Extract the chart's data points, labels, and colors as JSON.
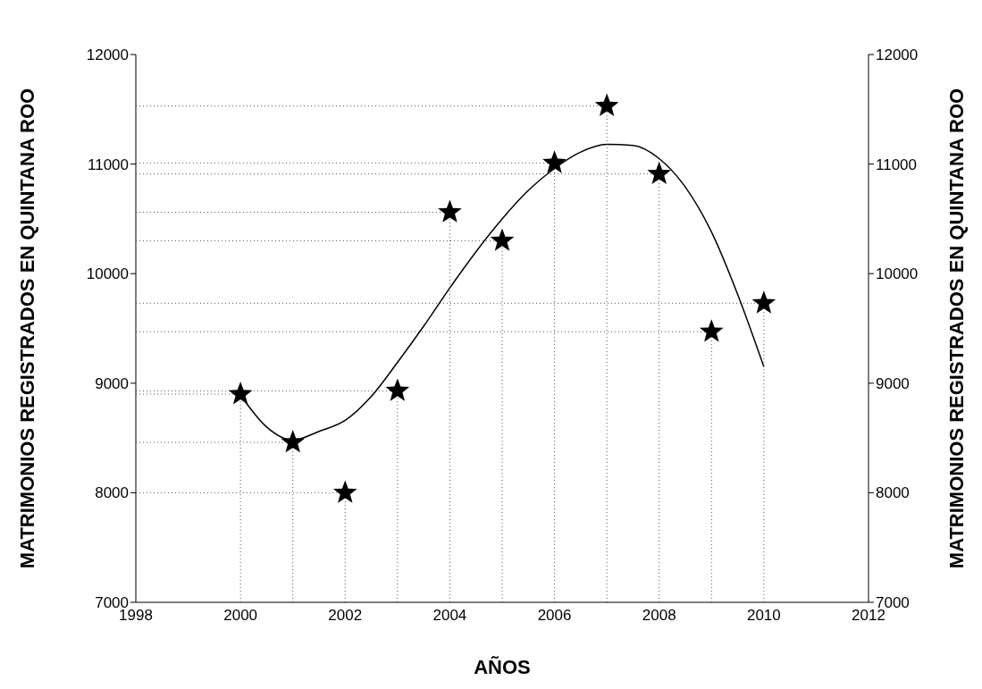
{
  "chart_data": {
    "type": "scatter",
    "xlabel": "AÑOS",
    "ylabel": "MATRIMONIOS REGISTRADOS EN QUINTANA ROO",
    "y2label": "MATRIMONIOS REGISTRADOS EN QUINTANA ROO",
    "xlim": [
      1998,
      2012
    ],
    "xticks": [
      1998,
      2000,
      2002,
      2004,
      2006,
      2008,
      2010,
      2012
    ],
    "ylim": [
      7000,
      12000
    ],
    "yticks": [
      7000,
      8000,
      9000,
      10000,
      11000,
      12000
    ],
    "y2lim": [
      7000,
      12000
    ],
    "y2ticks": [
      7000,
      8000,
      9000,
      10000,
      11000,
      12000
    ],
    "legend": false,
    "marker": "star",
    "ref_lines": [
      {
        "axis": "y",
        "value": 8900,
        "color": "#555555",
        "line_style": "dotted"
      },
      {
        "axis": "y",
        "value": 8460,
        "color": "#555555",
        "line_style": "dotted"
      },
      {
        "axis": "y",
        "value": 8000,
        "color": "#555555",
        "line_style": "dotted"
      },
      {
        "axis": "y",
        "value": 8930,
        "color": "#555555",
        "line_style": "dotted"
      },
      {
        "axis": "y",
        "value": 10560,
        "color": "#555555",
        "line_style": "dotted"
      },
      {
        "axis": "y",
        "value": 10300,
        "color": "#555555",
        "line_style": "dotted"
      },
      {
        "axis": "y",
        "value": 11010,
        "color": "#555555",
        "line_style": "dotted"
      },
      {
        "axis": "y",
        "value": 11530,
        "color": "#555555",
        "line_style": "dotted"
      },
      {
        "axis": "y",
        "value": 10910,
        "color": "#555555",
        "line_style": "dotted"
      },
      {
        "axis": "y",
        "value": 9470,
        "color": "#555555",
        "line_style": "dotted"
      },
      {
        "axis": "y",
        "value": 9730,
        "color": "#555555",
        "line_style": "dotted"
      },
      {
        "axis": "x",
        "value": 2000,
        "color": "#555555",
        "line_style": "dotted"
      },
      {
        "axis": "x",
        "value": 2001,
        "color": "#555555",
        "line_style": "dotted"
      },
      {
        "axis": "x",
        "value": 2002,
        "color": "#555555",
        "line_style": "dotted"
      },
      {
        "axis": "x",
        "value": 2003,
        "color": "#555555",
        "line_style": "dotted"
      },
      {
        "axis": "x",
        "value": 2004,
        "color": "#555555",
        "line_style": "dotted"
      },
      {
        "axis": "x",
        "value": 2005,
        "color": "#555555",
        "line_style": "dotted"
      },
      {
        "axis": "x",
        "value": 2006,
        "color": "#555555",
        "line_style": "dotted"
      },
      {
        "axis": "x",
        "value": 2007,
        "color": "#555555",
        "line_style": "dotted"
      },
      {
        "axis": "x",
        "value": 2008,
        "color": "#555555",
        "line_style": "dotted"
      },
      {
        "axis": "x",
        "value": 2009,
        "color": "#555555",
        "line_style": "dotted"
      },
      {
        "axis": "x",
        "value": 2010,
        "color": "#555555",
        "line_style": "dotted"
      }
    ],
    "series": [
      {
        "color": "#000000",
        "x": [
          2000,
          2001,
          2002,
          2003,
          2004,
          2005,
          2006,
          2007,
          2008,
          2009,
          2010
        ],
        "values": [
          8900,
          8460,
          8000,
          8930,
          10560,
          10300,
          11010,
          11530,
          10910,
          9470,
          9730
        ]
      },
      {
        "type": "line",
        "color": "#000000",
        "marker": "none",
        "line_style": "solid",
        "x": [
          2000,
          2000.5,
          2001,
          2001.5,
          2002,
          2002.5,
          2003,
          2003.5,
          2004,
          2004.5,
          2005,
          2005.5,
          2006,
          2006.5,
          2007,
          2007.5,
          2008,
          2008.5,
          2009,
          2009.5,
          2010
        ],
        "values": [
          8890,
          8600,
          8480,
          8560,
          8660,
          8880,
          9190,
          9520,
          9870,
          10200,
          10500,
          10760,
          10960,
          11110,
          11180,
          11170,
          11050,
          10790,
          10380,
          9810,
          9150
        ]
      }
    ]
  }
}
